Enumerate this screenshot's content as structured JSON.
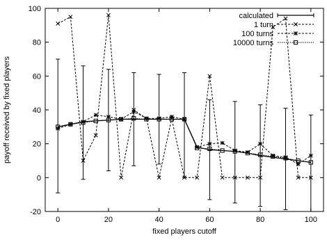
{
  "chart_data": {
    "type": "line",
    "title": "",
    "xlabel": "fixed players cutoff",
    "ylabel": "payoff received by fixed players",
    "xlim": [
      -5,
      105
    ],
    "ylim": [
      -20,
      100
    ],
    "xticks": [
      0,
      20,
      40,
      60,
      80,
      100
    ],
    "yticks": [
      -20,
      0,
      20,
      40,
      60,
      80,
      100
    ],
    "xtick_labels": [
      "0",
      "20",
      "40",
      "60",
      "80",
      "100"
    ],
    "ytick_labels": [
      "-20",
      "0",
      "20",
      "40",
      "60",
      "80",
      "100"
    ],
    "grid": false,
    "legend_position": "top-right",
    "series": [
      {
        "name": "calculated",
        "style": "solid-errorbars",
        "color": "#000000",
        "x": [
          0,
          5,
          10,
          15,
          20,
          25,
          30,
          35,
          40,
          45,
          50,
          55,
          60,
          65,
          70,
          75,
          80,
          85,
          90,
          95,
          100
        ],
        "y": [
          30,
          31.5,
          33,
          33.5,
          34,
          34.5,
          34.5,
          34.5,
          34.5,
          34.5,
          34.5,
          18,
          16.5,
          16,
          15.5,
          14.5,
          13,
          12,
          11,
          10,
          9
        ],
        "error_low": [
          -9,
          null,
          -1,
          null,
          4,
          null,
          7,
          null,
          8,
          null,
          0,
          null,
          -13,
          null,
          -15,
          null,
          -17,
          null,
          -19,
          null,
          -20
        ],
        "error_high": [
          70,
          null,
          66,
          null,
          64,
          null,
          62,
          null,
          61,
          null,
          62,
          null,
          46,
          null,
          45,
          null,
          43,
          null,
          41,
          null,
          37
        ]
      },
      {
        "name": "1 turn",
        "style": "dashed-x",
        "color": "#000000",
        "x": [
          0,
          5,
          10,
          15,
          20,
          25,
          30,
          35,
          40,
          45,
          50,
          55,
          60,
          65,
          70,
          75,
          80,
          85,
          90,
          95,
          100
        ],
        "y": [
          91,
          95,
          10,
          25,
          96,
          0,
          40,
          35,
          0,
          35,
          0,
          0,
          60,
          0,
          0,
          0,
          0,
          89,
          94,
          0,
          0
        ]
      },
      {
        "name": "100 turns",
        "style": "dashed-asterisk",
        "color": "#000000",
        "x": [
          0,
          5,
          10,
          15,
          20,
          25,
          30,
          35,
          40,
          45,
          50,
          55,
          60,
          65,
          70,
          75,
          80,
          85,
          90,
          95,
          100
        ],
        "y": [
          29,
          31.5,
          33,
          37,
          36,
          34.5,
          39,
          35,
          35,
          36,
          34.5,
          18,
          20,
          20.5,
          16,
          15,
          20,
          13,
          12,
          8,
          13
        ]
      },
      {
        "name": "10000 turns",
        "style": "dotted-square",
        "color": "#000000",
        "x": [
          0,
          5,
          10,
          15,
          20,
          25,
          30,
          35,
          40,
          45,
          50,
          55,
          60,
          65,
          70,
          75,
          80,
          85,
          90,
          95,
          100
        ],
        "y": [
          30,
          31.5,
          32.5,
          33.5,
          34,
          34.5,
          35,
          34.5,
          34.5,
          34.5,
          34.5,
          17.5,
          17,
          16,
          15.5,
          14.5,
          13.5,
          12.5,
          11.5,
          10,
          9
        ]
      }
    ]
  }
}
